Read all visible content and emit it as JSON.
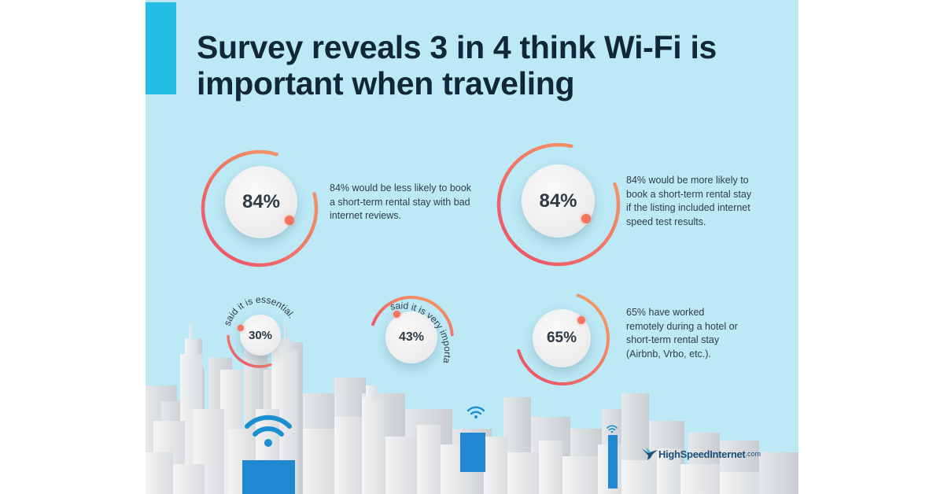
{
  "headline": "Survey reveals 3 in 4 think Wi-Fi is important when traveling",
  "stats": [
    {
      "value": "84%",
      "fraction": 0.84,
      "text": "84% would be less likely to book a short-term rental stay with bad internet reviews."
    },
    {
      "value": "84%",
      "fraction": 0.84,
      "text": "84% would be more likely to book a short-term rental stay if the listing included internet speed test results."
    },
    {
      "value": "30%",
      "fraction": 0.3,
      "label": "said it is essential."
    },
    {
      "value": "43%",
      "fraction": 0.43,
      "label": "said it is very important."
    },
    {
      "value": "65%",
      "fraction": 0.65,
      "text": "65% have worked remotely during a hotel or short-term rental stay (Airbnb, Vrbo, etc.)."
    }
  ],
  "logo": {
    "name": "HighSpeedInternet",
    "suffix": ".com"
  },
  "icons": [
    "wifi-icon",
    "hummingbird-logo-icon"
  ],
  "colors": {
    "background": "#bde9f6",
    "accent": "#25bde6",
    "ring_start": "#f4a264",
    "ring_end": "#ec4d6a",
    "headline": "#12263a",
    "building_blue": "#1f88d0"
  }
}
